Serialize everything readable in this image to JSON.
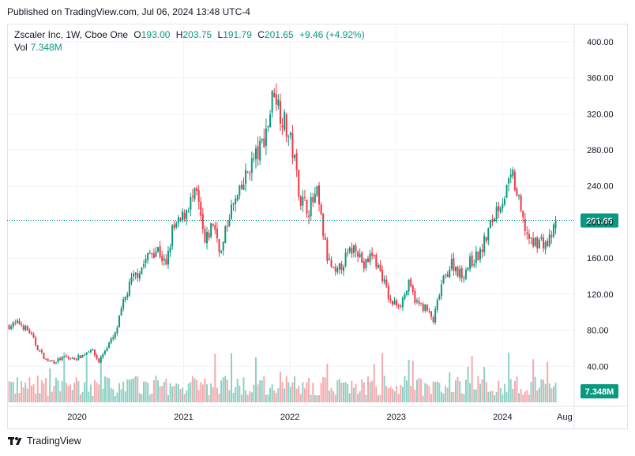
{
  "header": {
    "published": "Published on TradingView.com, Jul 06, 2024 13:48 UTC-4"
  },
  "legend": {
    "symbol": "Zscaler Inc, 1W, Cboe One",
    "open_label": "O",
    "open": "193.00",
    "high_label": "H",
    "high": "203.75",
    "low_label": "L",
    "low": "191.79",
    "close_label": "C",
    "close": "201.65",
    "change": "+9.46 (+4.92%)",
    "volume_label": "Vol",
    "volume": "7.348M"
  },
  "footer": {
    "brand": "TradingView"
  },
  "colors": {
    "up": "#089981",
    "down": "#f23645",
    "up_volume": "#8fd0c4",
    "down_volume": "#f7a9ae",
    "grid": "#f0f3fa",
    "axis_text": "#131722"
  },
  "chart_data": {
    "type": "candlestick",
    "interval": "1W",
    "ylim": [
      0,
      420
    ],
    "y_ticks": [
      "40.00",
      "80.00",
      "120.00",
      "160.00",
      "200.00",
      "240.00",
      "280.00",
      "320.00",
      "360.00",
      "400.00"
    ],
    "x_ticks": [
      "2020",
      "2021",
      "2022",
      "2023",
      "2024",
      "Aug"
    ],
    "last_price": "201.65",
    "last_volume": "7.348M",
    "series": [
      {
        "name": "price",
        "points": [
          [
            "2019-05-13",
            85
          ],
          [
            "2019-06-17",
            88
          ],
          [
            "2019-07-22",
            78
          ],
          [
            "2019-08-19",
            60
          ],
          [
            "2019-09-16",
            47
          ],
          [
            "2019-10-14",
            45
          ],
          [
            "2019-11-18",
            50
          ],
          [
            "2019-12-16",
            48
          ],
          [
            "2020-01-20",
            52
          ],
          [
            "2020-02-17",
            60
          ],
          [
            "2020-03-16",
            45
          ],
          [
            "2020-04-13",
            62
          ],
          [
            "2020-05-11",
            75
          ],
          [
            "2020-06-08",
            110
          ],
          [
            "2020-07-06",
            135
          ],
          [
            "2020-08-10",
            150
          ],
          [
            "2020-09-07",
            165
          ],
          [
            "2020-10-05",
            170
          ],
          [
            "2020-11-02",
            150
          ],
          [
            "2020-11-23",
            190
          ],
          [
            "2020-12-21",
            200
          ],
          [
            "2021-01-18",
            220
          ],
          [
            "2021-02-15",
            230
          ],
          [
            "2021-03-15",
            175
          ],
          [
            "2021-04-12",
            200
          ],
          [
            "2021-05-10",
            165
          ],
          [
            "2021-06-07",
            210
          ],
          [
            "2021-07-12",
            230
          ],
          [
            "2021-08-16",
            262
          ],
          [
            "2021-09-20",
            280
          ],
          [
            "2021-10-18",
            310
          ],
          [
            "2021-11-08",
            350
          ],
          [
            "2021-11-22",
            330
          ],
          [
            "2021-12-13",
            310
          ],
          [
            "2022-01-10",
            280
          ],
          [
            "2022-02-07",
            225
          ],
          [
            "2022-03-07",
            215
          ],
          [
            "2022-04-04",
            230
          ],
          [
            "2022-05-09",
            160
          ],
          [
            "2022-06-06",
            140
          ],
          [
            "2022-07-11",
            160
          ],
          [
            "2022-08-15",
            175
          ],
          [
            "2022-09-12",
            150
          ],
          [
            "2022-10-10",
            165
          ],
          [
            "2022-11-14",
            140
          ],
          [
            "2022-12-12",
            110
          ],
          [
            "2023-01-16",
            110
          ],
          [
            "2023-02-13",
            130
          ],
          [
            "2023-03-13",
            110
          ],
          [
            "2023-04-10",
            105
          ],
          [
            "2023-05-08",
            90
          ],
          [
            "2023-06-05",
            130
          ],
          [
            "2023-07-10",
            155
          ],
          [
            "2023-08-14",
            140
          ],
          [
            "2023-09-11",
            155
          ],
          [
            "2023-10-16",
            165
          ],
          [
            "2023-11-13",
            190
          ],
          [
            "2023-12-11",
            215
          ],
          [
            "2024-01-08",
            230
          ],
          [
            "2024-02-05",
            250
          ],
          [
            "2024-02-26",
            220
          ],
          [
            "2024-03-11",
            200
          ],
          [
            "2024-04-08",
            175
          ],
          [
            "2024-05-06",
            180
          ],
          [
            "2024-06-03",
            175
          ],
          [
            "2024-06-24",
            190
          ],
          [
            "2024-07-01",
            201.65
          ]
        ]
      }
    ]
  }
}
